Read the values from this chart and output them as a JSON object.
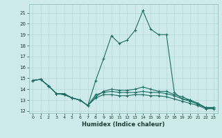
{
  "xlabel": "Humidex (Indice chaleur)",
  "bg_color": "#ceeaea",
  "grid_color": "#b8d8d8",
  "line_color": "#1a6e64",
  "xlim": [
    -0.5,
    23.5
  ],
  "ylim": [
    11.8,
    21.8
  ],
  "yticks": [
    12,
    13,
    14,
    15,
    16,
    17,
    18,
    19,
    20,
    21
  ],
  "xticks": [
    0,
    1,
    2,
    3,
    4,
    5,
    6,
    7,
    8,
    9,
    10,
    11,
    12,
    13,
    14,
    15,
    16,
    17,
    18,
    19,
    20,
    21,
    22,
    23
  ],
  "series": [
    [
      14.8,
      14.9,
      14.3,
      13.6,
      13.6,
      13.2,
      13.0,
      12.5,
      14.8,
      16.8,
      18.9,
      18.2,
      18.5,
      19.4,
      21.2,
      19.5,
      19.0,
      19.0,
      13.7,
      13.1,
      13.0,
      12.7,
      12.3,
      12.3
    ],
    [
      14.8,
      14.9,
      14.3,
      13.6,
      13.5,
      13.2,
      13.0,
      12.5,
      13.3,
      13.8,
      14.0,
      13.9,
      13.9,
      14.0,
      14.2,
      14.0,
      13.8,
      13.8,
      13.5,
      13.3,
      13.0,
      12.7,
      12.3,
      12.3
    ],
    [
      14.8,
      14.9,
      14.3,
      13.6,
      13.5,
      13.2,
      13.0,
      12.5,
      13.5,
      13.7,
      13.8,
      13.7,
      13.7,
      13.7,
      13.8,
      13.7,
      13.7,
      13.6,
      13.4,
      13.1,
      12.9,
      12.6,
      12.3,
      12.3
    ],
    [
      14.8,
      14.9,
      14.3,
      13.6,
      13.5,
      13.2,
      13.0,
      12.5,
      13.2,
      13.5,
      13.5,
      13.4,
      13.4,
      13.5,
      13.5,
      13.4,
      13.4,
      13.3,
      13.1,
      12.9,
      12.7,
      12.5,
      12.2,
      12.2
    ]
  ]
}
